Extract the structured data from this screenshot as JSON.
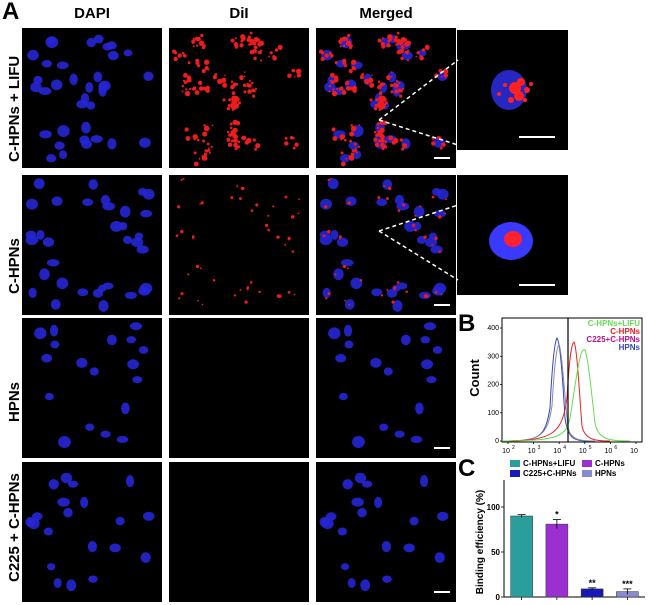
{
  "panelA": {
    "letter": "A",
    "columns": [
      "DAPI",
      "DiI",
      "Merged"
    ],
    "rows": [
      "C-HPNs + LIFU",
      "C-HPNs",
      "HPNs",
      "C225 + C-HPNs"
    ]
  },
  "panelB": {
    "letter": "B",
    "ylabel": "Count",
    "legend": [
      {
        "label": "C-HPNs+LIFU",
        "color": "#66dd55"
      },
      {
        "label": "C-HPNs",
        "color": "#ee2222"
      },
      {
        "label": "C225+C-HPNs",
        "color": "#bb1188"
      },
      {
        "label": "HPNs",
        "color": "#3344bb"
      }
    ],
    "yticks": [
      "0",
      "100",
      "200",
      "300",
      "400"
    ],
    "xticks": [
      "10",
      "10",
      "10",
      "10",
      "10",
      "10"
    ],
    "xtick_exp": [
      "2",
      "3",
      "4",
      "5",
      "6",
      ""
    ]
  },
  "panelC": {
    "letter": "C",
    "chart_data": {
      "type": "bar",
      "categories": [
        "C-HPNs+LIFU",
        "C-HPNs",
        "C225+C-HPNs",
        "HPNs"
      ],
      "values": [
        90,
        81,
        9,
        6
      ],
      "errors": [
        1.5,
        5,
        1.2,
        3
      ],
      "significance": [
        "",
        "*",
        "**",
        "***"
      ],
      "colors": [
        "#2a9d9d",
        "#9b30d0",
        "#1818b8",
        "#8a8ad0"
      ],
      "ylabel": "Binding efficiency (%)",
      "ylim": [
        0,
        130
      ],
      "yticks": [
        0,
        50,
        100
      ]
    }
  }
}
